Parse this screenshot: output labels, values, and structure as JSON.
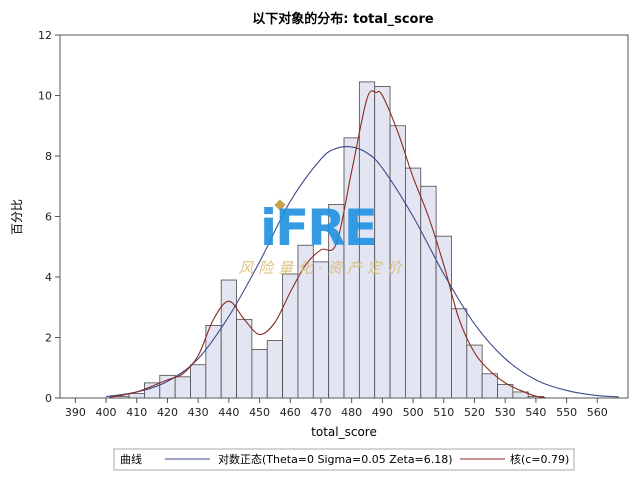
{
  "chart_data": {
    "type": "bar",
    "title": "以下对象的分布: total_score",
    "xlabel": "total_score",
    "ylabel": "百分比",
    "xlim": [
      385,
      570
    ],
    "ylim": [
      0,
      12
    ],
    "x_ticks": [
      390,
      400,
      410,
      420,
      430,
      440,
      450,
      460,
      470,
      480,
      490,
      500,
      510,
      520,
      530,
      540,
      550,
      560
    ],
    "y_ticks": [
      0,
      2,
      4,
      6,
      8,
      10,
      12
    ],
    "bin_width": 5,
    "bins": {
      "centers": [
        405,
        410,
        415,
        420,
        425,
        430,
        435,
        440,
        445,
        450,
        455,
        460,
        465,
        470,
        475,
        480,
        485,
        490,
        495,
        500,
        505,
        510,
        515,
        520,
        525,
        530,
        535,
        540
      ],
      "values": [
        0.05,
        0.15,
        0.5,
        0.75,
        0.7,
        1.1,
        2.4,
        3.9,
        2.6,
        1.6,
        1.9,
        4.1,
        5.05,
        4.5,
        6.4,
        8.6,
        10.45,
        10.3,
        9.0,
        7.6,
        7.0,
        5.35,
        2.95,
        1.75,
        0.8,
        0.45,
        0.2,
        0.05
      ]
    },
    "series": [
      {
        "name": "对数正态(Theta=0 Sigma=0.05 Zeta=6.18)",
        "type": "line",
        "color": "#3b4a8c",
        "x": [
          400,
          410,
          420,
          430,
          440,
          450,
          460,
          470,
          475,
          480,
          485,
          490,
          500,
          510,
          520,
          530,
          540,
          550,
          560,
          567
        ],
        "values": [
          0.05,
          0.2,
          0.55,
          1.3,
          2.7,
          4.5,
          6.5,
          7.9,
          8.25,
          8.3,
          8.1,
          7.6,
          6.0,
          4.1,
          2.45,
          1.3,
          0.6,
          0.25,
          0.08,
          0.04
        ]
      },
      {
        "name": "核(c=0.79)",
        "type": "line",
        "color": "#8b2a1f",
        "x": [
          401,
          410,
          420,
          425,
          430,
          435,
          440,
          445,
          450,
          455,
          460,
          465,
          470,
          475,
          480,
          485,
          488,
          490,
          495,
          500,
          505,
          510,
          515,
          520,
          525,
          530,
          535,
          540,
          543
        ],
        "values": [
          0.02,
          0.2,
          0.6,
          0.8,
          1.4,
          2.6,
          3.2,
          2.6,
          2.1,
          2.5,
          3.5,
          4.4,
          4.9,
          5.1,
          7.5,
          9.9,
          10.1,
          10.0,
          8.8,
          7.3,
          6.0,
          4.4,
          2.6,
          1.5,
          0.9,
          0.5,
          0.25,
          0.06,
          0.02
        ]
      }
    ],
    "legend": {
      "title": "曲线",
      "position": "bottom",
      "entries": [
        "对数正态(Theta=0 Sigma=0.05 Zeta=6.18)",
        "核(c=0.79)"
      ]
    },
    "grid": false
  },
  "watermark": {
    "logo_text": "iFRE",
    "tagline": "风 险 量 化 · 资 产 定 价",
    "logo_color": "#1e90e0",
    "tagline_color": "#d8b870"
  },
  "colors": {
    "bar_fill": "#e3e6f2",
    "bar_stroke": "#4a4a4a",
    "axis": "#555555"
  }
}
